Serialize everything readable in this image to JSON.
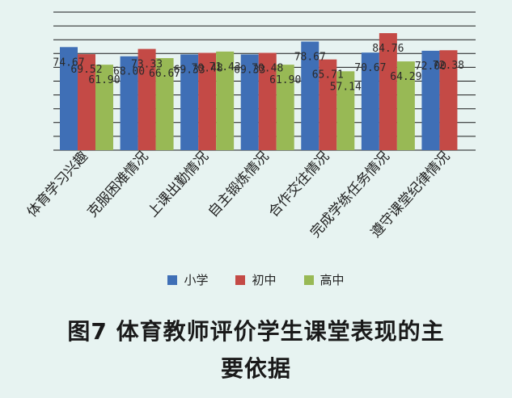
{
  "caption": {
    "line1": "图7  体育教师评价学生课堂表现的主",
    "line2": "要依据"
  },
  "chart_data": {
    "type": "bar",
    "categories": [
      "体育学习兴趣",
      "克服困难情况",
      "上课出勤情况",
      "自主锻炼情况",
      "合作交往情况",
      "完成学练任务情况",
      "遵守课堂纪律情况"
    ],
    "series": [
      {
        "name": "小学",
        "color": "#3f6fb6",
        "values": [
          74.67,
          68.0,
          69.33,
          69.33,
          78.67,
          70.67,
          72.0
        ]
      },
      {
        "name": "初中",
        "color": "#c44a46",
        "values": [
          69.52,
          73.33,
          70.48,
          70.48,
          65.71,
          84.76,
          72.38
        ]
      },
      {
        "name": "高中",
        "color": "#98b955",
        "values": [
          61.9,
          66.67,
          71.43,
          61.9,
          57.14,
          64.29,
          null
        ]
      }
    ],
    "data_labels": [
      [
        "74.67",
        "68.00",
        "69.33",
        "69.33",
        "78.67",
        "70.67",
        "72.00"
      ],
      [
        "69.52",
        "73.33",
        "70.48",
        "70.48",
        "65.71",
        "84.76",
        "72.38"
      ],
      [
        "61.90",
        "66.67",
        "71.43",
        "61.90",
        "57.14",
        "64.29",
        ""
      ]
    ],
    "ylim": [
      0,
      100
    ],
    "grid": true,
    "legend_position": "bottom"
  }
}
